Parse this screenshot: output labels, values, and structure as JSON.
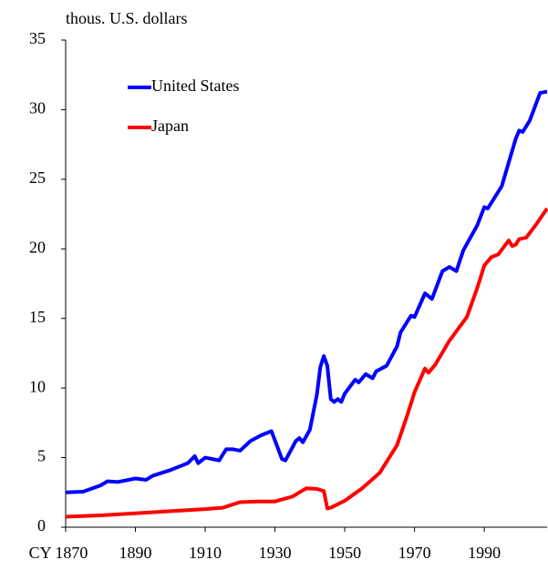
{
  "chart_data": {
    "type": "line",
    "y_axis_label": "thous. U.S. dollars",
    "xlim": [
      1870,
      2008
    ],
    "xticks": [
      {
        "value": 1870,
        "label": "CY 1870"
      },
      1890,
      1910,
      1930,
      1950,
      1970,
      1990
    ],
    "ylim": [
      0,
      35
    ],
    "yticks": [
      0,
      5,
      10,
      15,
      20,
      25,
      30,
      35
    ],
    "grid": false,
    "legend": "upper left",
    "series": [
      {
        "name": "United States",
        "color": "#0000ff",
        "x": [
          1870,
          1875,
          1880,
          1882,
          1885,
          1890,
          1893,
          1895,
          1900,
          1905,
          1907,
          1908,
          1910,
          1914,
          1916,
          1918,
          1920,
          1923,
          1926,
          1929,
          1932,
          1933,
          1936,
          1937,
          1938,
          1940,
          1942,
          1943,
          1944,
          1945,
          1946,
          1947,
          1948,
          1949,
          1950,
          1953,
          1954,
          1956,
          1958,
          1959,
          1962,
          1965,
          1966,
          1969,
          1970,
          1973,
          1975,
          1978,
          1980,
          1982,
          1984,
          1988,
          1990,
          1991,
          1995,
          1999,
          2000,
          2001,
          2003,
          2006,
          2008
        ],
        "values": [
          2.5,
          2.55,
          3.0,
          3.3,
          3.25,
          3.5,
          3.4,
          3.7,
          4.1,
          4.6,
          5.1,
          4.6,
          5.0,
          4.8,
          5.6,
          5.6,
          5.5,
          6.2,
          6.6,
          6.9,
          4.9,
          4.8,
          6.2,
          6.4,
          6.1,
          7.0,
          9.5,
          11.5,
          12.3,
          11.6,
          9.2,
          9.0,
          9.2,
          9.0,
          9.6,
          10.6,
          10.4,
          11.0,
          10.7,
          11.2,
          11.6,
          13.0,
          14.0,
          15.2,
          15.1,
          16.8,
          16.4,
          18.4,
          18.7,
          18.4,
          19.9,
          21.7,
          23.0,
          22.9,
          24.5,
          27.9,
          28.5,
          28.4,
          29.2,
          31.2,
          31.3
        ]
      },
      {
        "name": "Japan",
        "color": "#ff0000",
        "x": [
          1870,
          1880,
          1890,
          1900,
          1910,
          1915,
          1920,
          1925,
          1930,
          1935,
          1939,
          1942,
          1944,
          1945,
          1946,
          1950,
          1955,
          1960,
          1965,
          1968,
          1970,
          1973,
          1974,
          1976,
          1980,
          1985,
          1988,
          1990,
          1992,
          1994,
          1997,
          1998,
          1999,
          2000,
          2002,
          2005,
          2008
        ],
        "values": [
          0.75,
          0.85,
          1.0,
          1.15,
          1.3,
          1.4,
          1.8,
          1.85,
          1.85,
          2.2,
          2.8,
          2.75,
          2.6,
          1.35,
          1.4,
          1.9,
          2.8,
          3.9,
          5.9,
          8.1,
          9.7,
          11.4,
          11.1,
          11.7,
          13.4,
          15.1,
          17.2,
          18.8,
          19.4,
          19.6,
          20.6,
          20.2,
          20.3,
          20.7,
          20.8,
          21.8,
          22.9
        ]
      }
    ]
  }
}
